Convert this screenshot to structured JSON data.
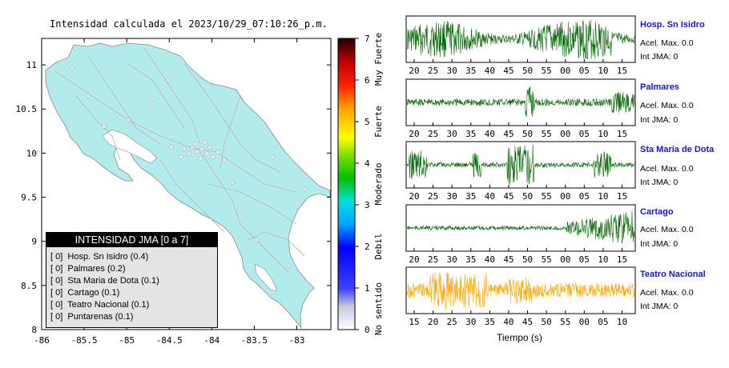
{
  "map": {
    "title": "Intensidad calculada el 2023/10/29_07:10:26_p.m.",
    "x_ticks": [
      "-86",
      "-85.5",
      "-85",
      "-84.5",
      "-84",
      "-83.5",
      "-83"
    ],
    "y_ticks": [
      "11",
      "10.5",
      "10",
      "9.5",
      "9",
      "8.5",
      "8"
    ],
    "xlim": [
      -86,
      -82.6
    ],
    "ylim": [
      8,
      11.3
    ],
    "land_color": "#b2ebeb"
  },
  "colorbar": {
    "ticks": [
      "0",
      "1",
      "2",
      "3",
      "4",
      "5",
      "6",
      "7"
    ],
    "range": [
      0,
      7
    ],
    "labels": [
      "No sentido",
      "Debil",
      "Moderado",
      "Fuerte",
      "Muy Fuerte"
    ]
  },
  "legend": {
    "title": "INTENSIDAD JMA [0 a 7]",
    "items": [
      {
        "badge": "[ 0]",
        "text": "Hosp. Sn Isidro (0.4)"
      },
      {
        "badge": "[ 0]",
        "text": "Palmares (0.2)"
      },
      {
        "badge": "[ 0]",
        "text": "Sta Maria de Dota (0.1)"
      },
      {
        "badge": "[ 0]",
        "text": "Cartago (0.1)"
      },
      {
        "badge": "[ 0]",
        "text": "Teatro Nacional (0.1)"
      },
      {
        "badge": "[ 0]",
        "text": "Puntarenas (0.1)"
      }
    ]
  },
  "stations": [
    {
      "name": "Hosp. Sn Isidro",
      "acel": "Acel. Max. 0.0",
      "int": "Int JMA: 0",
      "color": "#006400",
      "ticks": [
        "20",
        "25",
        "30",
        "35",
        "40",
        "45",
        "50",
        "55",
        "00",
        "05",
        "10",
        "15"
      ]
    },
    {
      "name": "Palmares",
      "acel": "Acel. Max. 0.0",
      "int": "Int JMA: 0",
      "color": "#006400",
      "ticks": [
        "20",
        "25",
        "30",
        "35",
        "40",
        "45",
        "50",
        "55",
        "00",
        "05",
        "10",
        "15"
      ]
    },
    {
      "name": "Sta Maria de Dota",
      "acel": "Acel. Max. 0.0",
      "int": "Int JMA: 0",
      "color": "#006400",
      "ticks": [
        "20",
        "25",
        "30",
        "35",
        "40",
        "45",
        "50",
        "55",
        "00",
        "05",
        "10",
        "15"
      ]
    },
    {
      "name": "Cartago",
      "acel": "Acel. Max. 0.0",
      "int": "Int JMA: 0",
      "color": "#006400",
      "ticks": [
        "20",
        "25",
        "30",
        "35",
        "40",
        "45",
        "50",
        "55",
        "00",
        "05",
        "10",
        "15"
      ]
    },
    {
      "name": "Teatro Nacional",
      "acel": "Acel. Max. 0.0",
      "int": "Int JMA: 0",
      "color": "#ffa500",
      "ticks": [
        "15",
        "20",
        "25",
        "30",
        "35",
        "40",
        "45",
        "50",
        "55",
        "00",
        "05",
        "10"
      ]
    }
  ],
  "x_axis_label": "Tiempo (s)",
  "chart_data": [
    {
      "type": "heatmap",
      "title": "Intensidad calculada el 2023/10/29_07:10:26_p.m.",
      "x_ticks": [
        -86,
        -85.5,
        -85,
        -84.5,
        -84,
        -83.5,
        -83
      ],
      "y_ticks": [
        11,
        10.5,
        10,
        9.5,
        9,
        8.5,
        8
      ],
      "colorbar_range": [
        0,
        7
      ],
      "colorbar_labels": [
        "No sentido",
        "Debil",
        "Moderado",
        "Fuerte",
        "Muy Fuerte"
      ],
      "legend": "bottom-left"
    },
    {
      "type": "line",
      "xlabel": "Tiempo (s)",
      "series": [
        {
          "name": "Hosp. Sn Isidro",
          "tick_labels": [
            "20",
            "25",
            "30",
            "35",
            "40",
            "45",
            "50",
            "55",
            "00",
            "05",
            "10",
            "15"
          ]
        },
        {
          "name": "Palmares",
          "tick_labels": [
            "20",
            "25",
            "30",
            "35",
            "40",
            "45",
            "50",
            "55",
            "00",
            "05",
            "10",
            "15"
          ]
        },
        {
          "name": "Sta Maria de Dota",
          "tick_labels": [
            "20",
            "25",
            "30",
            "35",
            "40",
            "45",
            "50",
            "55",
            "00",
            "05",
            "10",
            "15"
          ]
        },
        {
          "name": "Cartago",
          "tick_labels": [
            "20",
            "25",
            "30",
            "35",
            "40",
            "45",
            "50",
            "55",
            "00",
            "05",
            "10",
            "15"
          ]
        },
        {
          "name": "Teatro Nacional",
          "tick_labels": [
            "15",
            "20",
            "25",
            "30",
            "35",
            "40",
            "45",
            "50",
            "55",
            "00",
            "05",
            "10"
          ]
        }
      ]
    }
  ]
}
